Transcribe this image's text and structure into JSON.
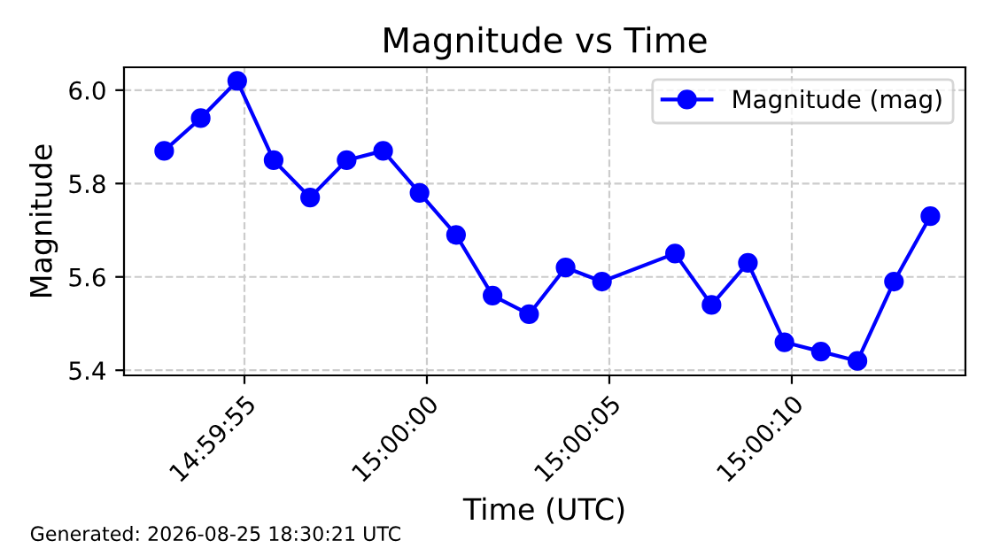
{
  "chart_data": {
    "type": "line",
    "title": "Magnitude vs Time",
    "xlabel": "Time (UTC)",
    "ylabel": "Magnitude",
    "x": [
      14.998,
      14.998278,
      14.998556,
      14.998833,
      14.999111,
      14.999389,
      14.999667,
      14.999944,
      15.000222,
      15.0005,
      15.000778,
      15.001056,
      15.001333,
      15.001889,
      15.002167,
      15.002444,
      15.002722,
      15.003,
      15.003278,
      15.003556,
      15.003833
    ],
    "series": [
      {
        "name": "Magnitude (mag)",
        "color": "#0000ff",
        "values": [
          5.87,
          5.94,
          6.02,
          5.85,
          5.77,
          5.85,
          5.87,
          5.78,
          5.69,
          5.56,
          5.52,
          5.62,
          5.59,
          5.65,
          5.54,
          5.63,
          5.46,
          5.44,
          5.42,
          5.59,
          5.73
        ]
      }
    ],
    "xlim": [
      14.997694,
      15.0041
    ],
    "xticks": [
      {
        "value": 14.998611,
        "label": "14:59:55"
      },
      {
        "value": 15.0,
        "label": "15:00:00"
      },
      {
        "value": 15.001389,
        "label": "15:00:05"
      },
      {
        "value": 15.002778,
        "label": "15:00:10"
      }
    ],
    "ylim": [
      5.389,
      6.049
    ],
    "yticks": [
      {
        "value": 5.4,
        "label": "5.4"
      },
      {
        "value": 5.6,
        "label": "5.6"
      },
      {
        "value": 5.8,
        "label": "5.8"
      },
      {
        "value": 6.0,
        "label": "6.0"
      }
    ],
    "annotations": [
      "Generated: 2026-08-25 18:30:21 UTC"
    ],
    "grid": true,
    "legend": "top right",
    "marker": "circle",
    "line_style": "solid"
  }
}
